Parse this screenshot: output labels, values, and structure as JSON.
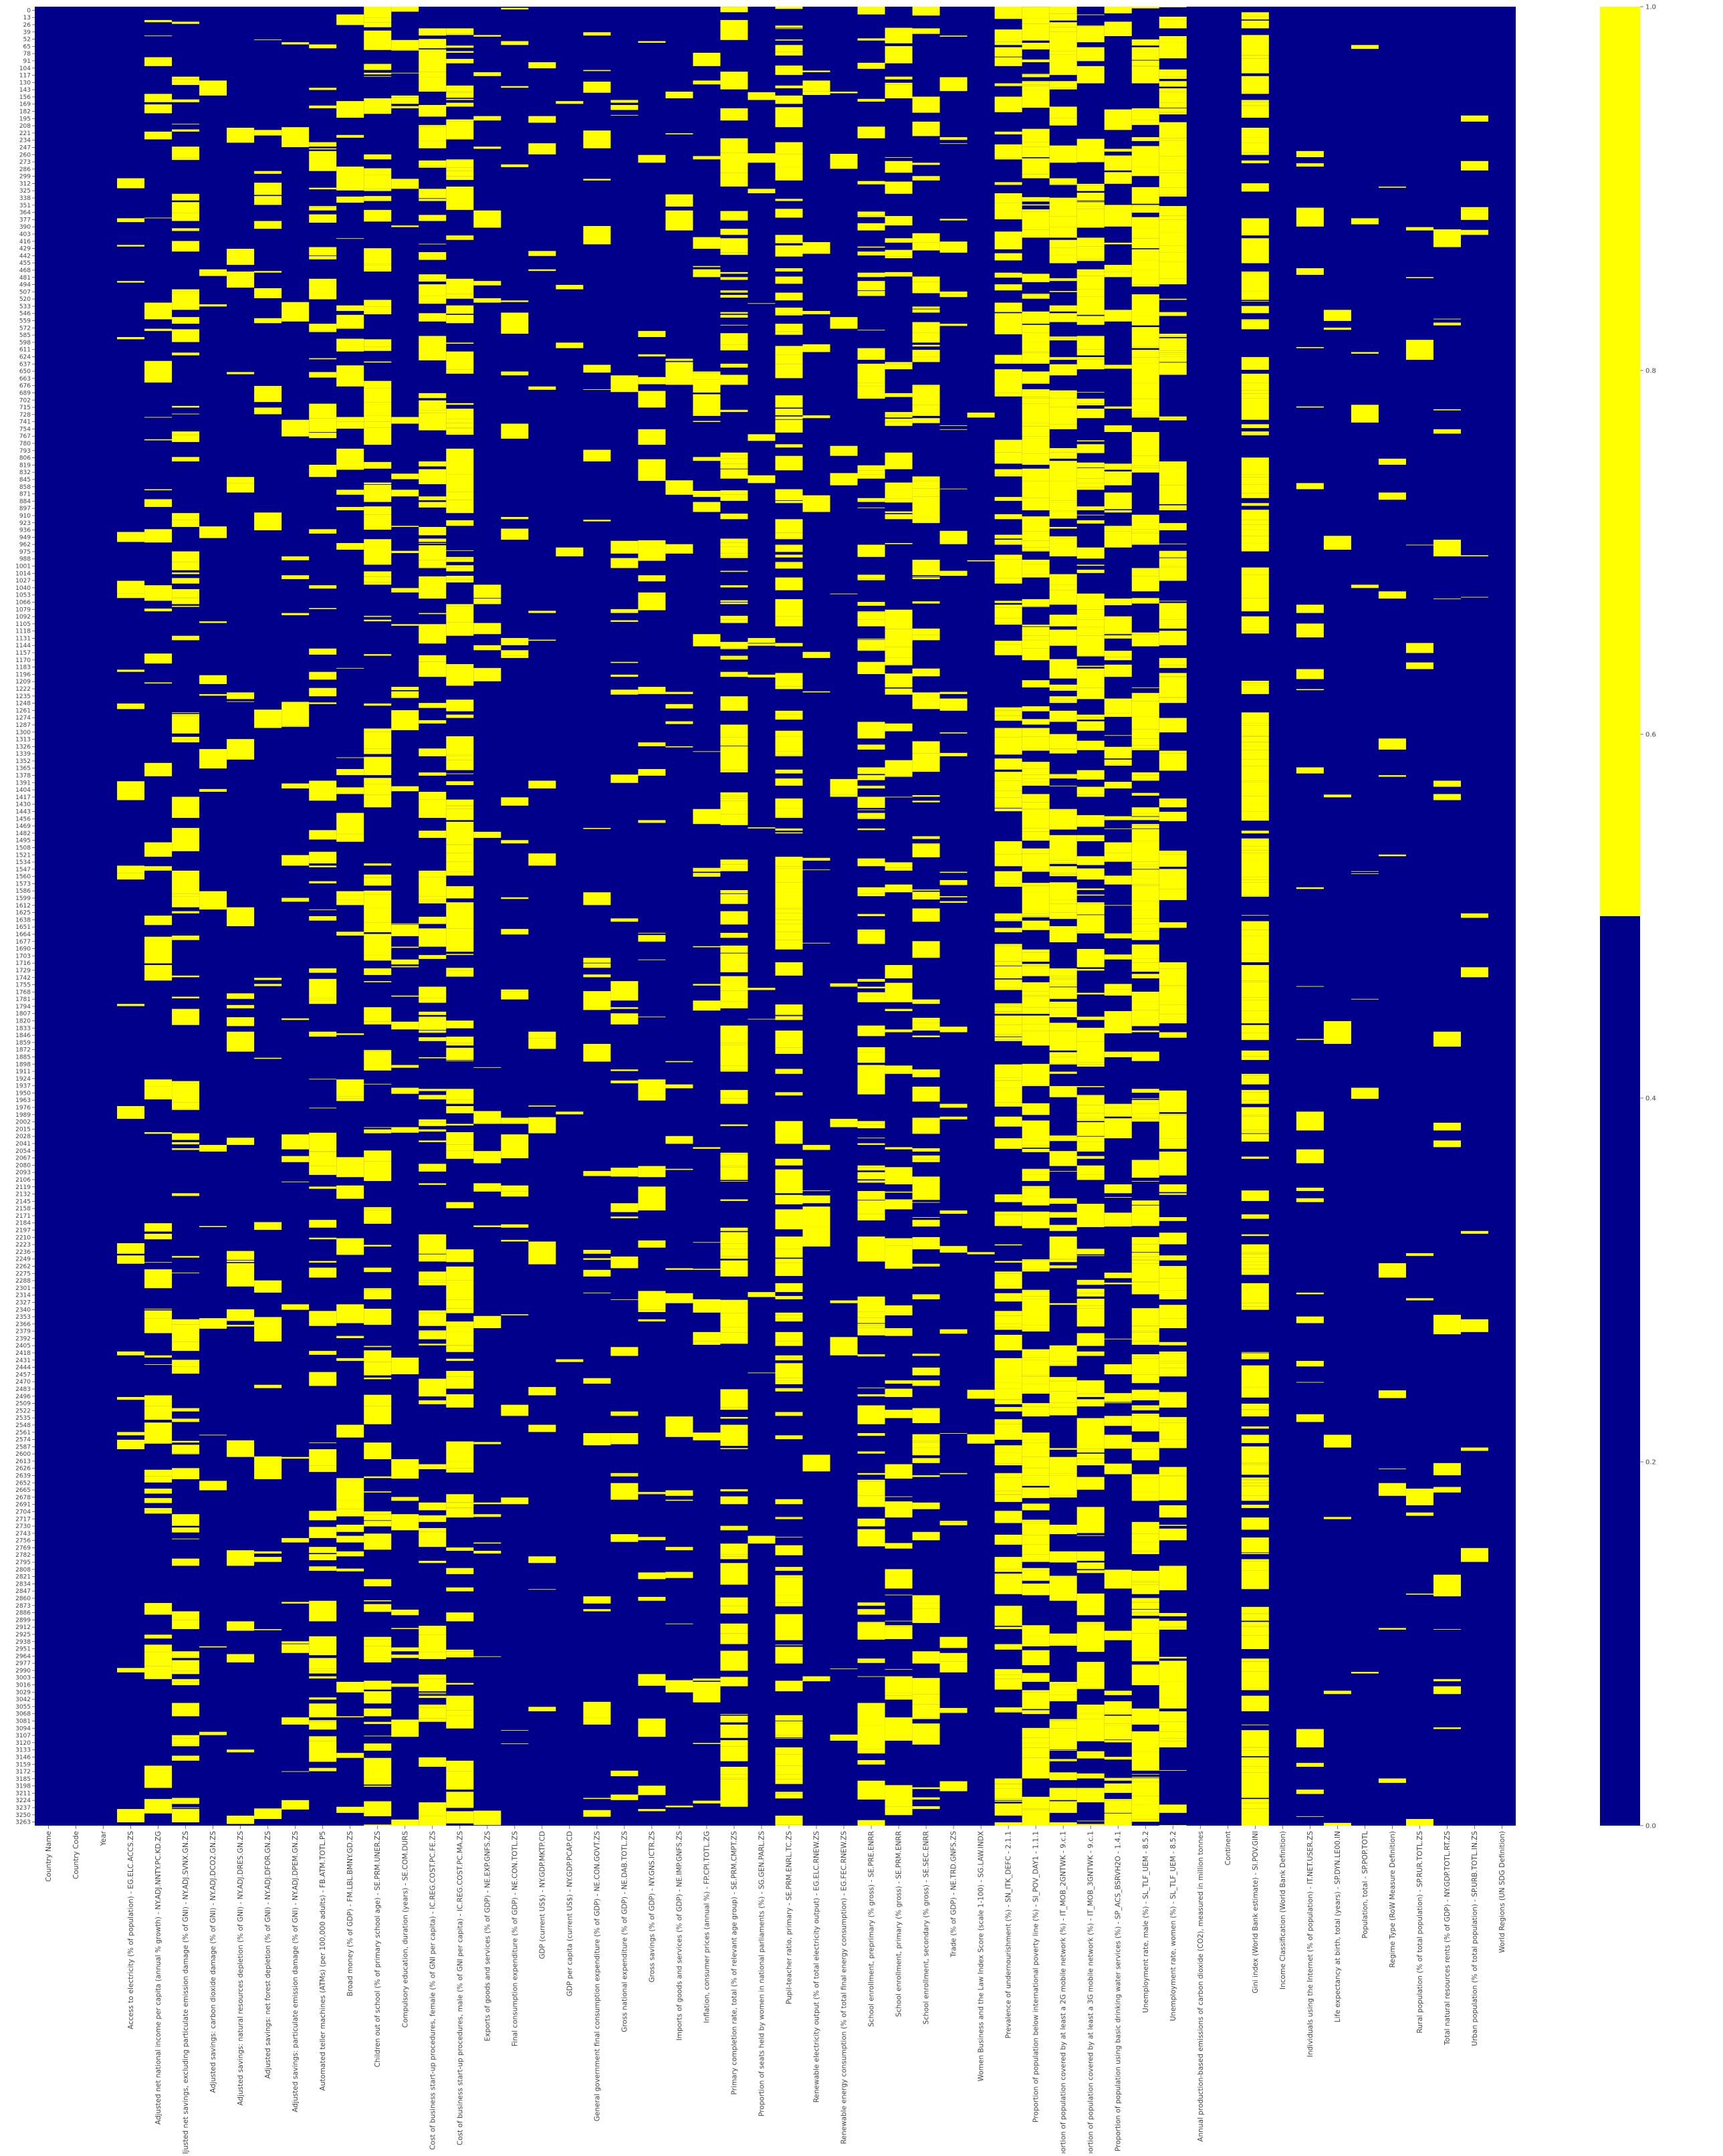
{
  "chart_data": {
    "type": "heatmap",
    "title": "",
    "xlabel": "",
    "ylabel": "",
    "colors": {
      "missing": "#ffff00",
      "present": "#00008b",
      "axis_text": "#444444"
    },
    "colormap": "two-level (dark blue = 0 / False, yellow = 1 / True)",
    "value_range": [
      0.0,
      1.0
    ],
    "n_rows_approx": 3276,
    "row_labels_shown_every_n_rows": 13,
    "y_tick_labels_first": [
      "0",
      "13",
      "26",
      "39",
      "52",
      "65",
      "78",
      "91",
      "104",
      "117",
      "130",
      "143",
      "156",
      "169",
      "182",
      "195"
    ],
    "y_tick_labels_last": [
      "3120",
      "3133",
      "3146",
      "3159",
      "3172",
      "3185",
      "3198",
      "3211",
      "3224",
      "3237",
      "3250",
      "3263"
    ],
    "columns": [
      "Country Name",
      "Country Code",
      "Year",
      "Access to electricity (% of population) - EG.ELC.ACCS.ZS",
      "Adjusted net national income per capita (annual % growth) - NY.ADJ.NNTY.PC.KD.ZG",
      "Adjusted net savings, excluding particulate emission damage (% of GNI) - NY.ADJ.SVNX.GN.ZS",
      "Adjusted savings: carbon dioxide damage (% of GNI) - NY.ADJ.DCO2.GN.ZS",
      "Adjusted savings: natural resources depletion (% of GNI) - NY.ADJ.DRES.GN.ZS",
      "Adjusted savings: net forest depletion (% of GNI) - NY.ADJ.DFOR.GN.ZS",
      "Adjusted savings: particulate emission damage (% of GNI) - NY.ADJ.DPEM.GN.ZS",
      "Automated teller machines (ATMs) (per 100,000 adults) - FB.ATM.TOTL.P5",
      "Broad money (% of GDP) - FM.LBL.BMNY.GD.ZS",
      "Children out of school (% of primary school age) - SE.PRM.UNER.ZS",
      "Compulsory education, duration (years) - SE.COM.DURS",
      "Cost of business start-up procedures, female (% of GNI per capita) - IC.REG.COST.PC.FE.ZS",
      "Cost of business start-up procedures, male (% of GNI per capita) - IC.REG.COST.PC.MA.ZS",
      "Exports of goods and services (% of GDP) - NE.EXP.GNFS.ZS",
      "Final consumption expenditure (% of GDP) - NE.CON.TOTL.ZS",
      "GDP (current US$) - NY.GDP.MKTP.CD",
      "GDP per capita (current US$) - NY.GDP.PCAP.CD",
      "General government final consumption expenditure (% of GDP) - NE.CON.GOVT.ZS",
      "Gross national expenditure (% of GDP) - NE.DAB.TOTL.ZS",
      "Gross savings (% of GDP) - NY.GNS.ICTR.ZS",
      "Imports of goods and services (% of GDP) - NE.IMP.GNFS.ZS",
      "Inflation, consumer prices (annual %) - FP.CPI.TOTL.ZG",
      "Primary completion rate, total (% of relevant age group) - SE.PRM.CMPT.ZS",
      "Proportion of seats held by women in national parliaments (%) - SG.GEN.PARL.ZS",
      "Pupil-teacher ratio, primary - SE.PRM.ENRL.TC.ZS",
      "Renewable electricity output (% of total electricity output) - EG.ELC.RNEW.ZS",
      "Renewable energy consumption (% of total final energy consumption) - EG.FEC.RNEW.ZS",
      "School enrollment, preprimary (% gross) - SE.PRE.ENRR",
      "School enrollment, primary (% gross) - SE.PRM.ENRR",
      "School enrollment, secondary (% gross) - SE.SEC.ENRR",
      "Trade (% of GDP) - NE.TRD.GNFS.ZS",
      "Women Business and the Law Index Score (scale 1-100) - SG.LAW.INDX",
      "Prevalence of undernourishment (%) - SN_ITK_DEFC - 2.1.1",
      "Proportion of population below international poverty line (%) - SI_POV_DAY1 - 1.1.1",
      "Proportion of population covered by at least a 2G mobile network (%) - IT_MOB_2GNTWK - 9.c.1",
      "Proportion of population covered by at least a 3G mobile network (%) - IT_MOB_3GNTWK - 9.c.1",
      "Proportion of population using basic drinking water services (%) - SP_ACS_BSRVH2O - 1.4.1",
      "Unemployment rate, male (%) - SL_TLF_UEM - 8.5.2",
      "Unemployment rate, women (%) - SL_TLF_UEM - 8.5.2",
      "Annual production-based emissions of carbon dioxide (CO2), measured in million tonnes",
      "Continent",
      "Gini index (World Bank estimate) - SI.POV.GINI",
      "Income Classification (World Bank Definition)",
      "Individuals using the Internet (% of population) - IT.NET.USER.ZS",
      "Life expectancy at birth, total (years) - SP.DYN.LE00.IN",
      "Population, total - SP.POP.TOTL",
      "Regime Type (RoW Measure Definition)",
      "Rural population (% of total population) - SP.RUR.TOTL.ZS",
      "Total natural resources rents (% of GDP) - NY.GDP.TOTL.RT.ZS",
      "Urban population (% of total population) - SP.URB.TOTL.IN.ZS",
      "World Regions (UN SDG Definition)"
    ],
    "approx_missing_fraction_by_column": [
      0.0,
      0.0,
      0.0,
      0.06,
      0.25,
      0.3,
      0.05,
      0.1,
      0.1,
      0.1,
      0.34,
      0.22,
      0.44,
      0.16,
      0.45,
      0.45,
      0.1,
      0.1,
      0.04,
      0.04,
      0.12,
      0.12,
      0.15,
      0.1,
      0.12,
      0.49,
      0.08,
      0.52,
      0.05,
      0.05,
      0.4,
      0.3,
      0.38,
      0.1,
      0.03,
      0.5,
      0.66,
      0.5,
      0.55,
      0.3,
      0.62,
      0.62,
      0.0,
      0.0,
      0.72,
      0.0,
      0.1,
      0.04,
      0.04,
      0.06,
      0.04,
      0.08,
      0.04,
      0.0
    ],
    "colorbar": {
      "ticks": [
        0.0,
        0.2,
        0.4,
        0.6,
        0.8,
        1.0
      ],
      "tick_labels": [
        "0.0",
        "0.2",
        "0.4",
        "0.6",
        "0.8",
        "1.0"
      ],
      "split_value": 0.5
    }
  }
}
